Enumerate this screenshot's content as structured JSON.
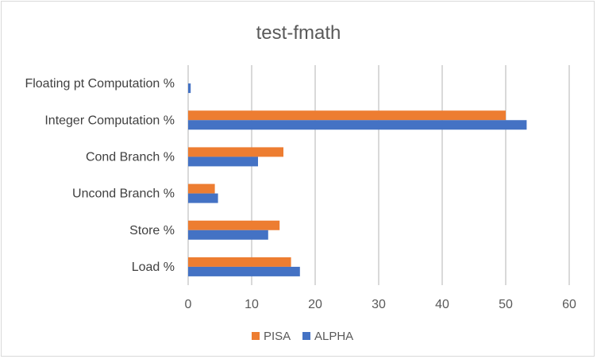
{
  "chart_data": {
    "type": "bar",
    "orientation": "horizontal",
    "title": "test-fmath",
    "categories": [
      "Floating pt Computation %",
      "Integer Computation %",
      "Cond Branch %",
      "Uncond Branch %",
      "Store %",
      "Load %"
    ],
    "series": [
      {
        "name": "PISA",
        "color": "#ED7D31",
        "values": [
          0,
          50.0,
          15.0,
          4.2,
          14.4,
          16.2
        ]
      },
      {
        "name": "ALPHA",
        "color": "#4472C4",
        "values": [
          0.4,
          53.3,
          11.0,
          4.7,
          12.6,
          17.6
        ]
      }
    ],
    "xlim": [
      0,
      60
    ],
    "xticks": [
      0,
      10,
      20,
      30,
      40,
      50,
      60
    ],
    "grid": true,
    "legend_position": "bottom"
  }
}
